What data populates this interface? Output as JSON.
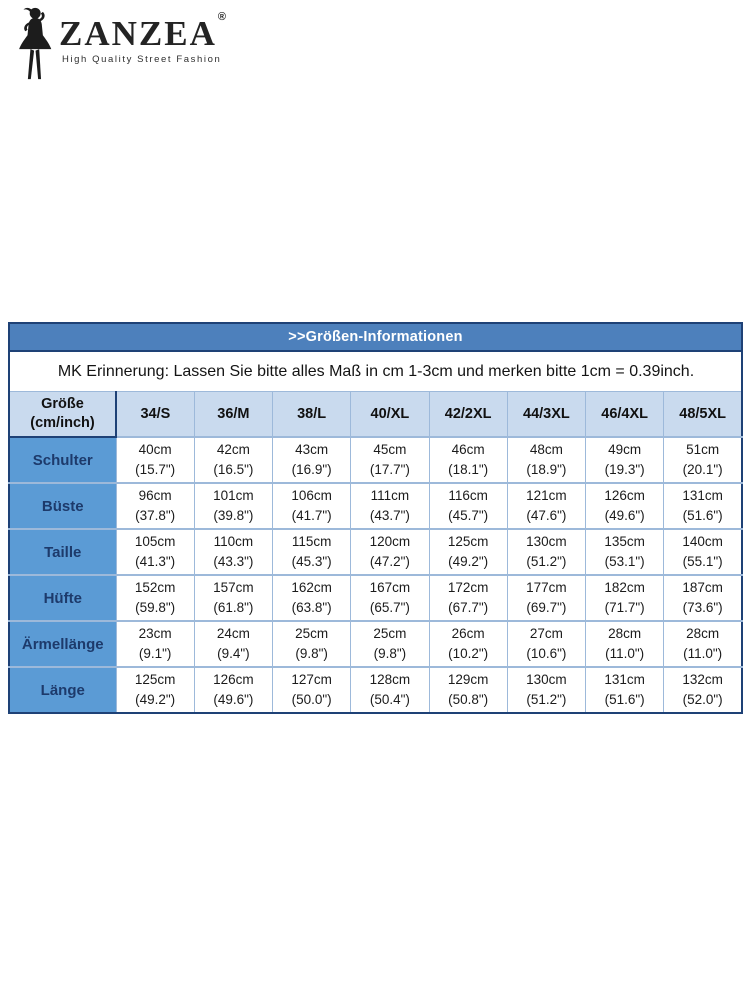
{
  "brand": {
    "name": "ZANZEA",
    "registered": "®",
    "tagline": "High Quality Street Fashion"
  },
  "size_chart": {
    "title": ">>Größen-Informationen",
    "note": "MK Erinnerung: Lassen Sie bitte alles Maß in cm 1-3cm und merken bitte 1cm = 0.39inch.",
    "corner": {
      "line1": "Größe",
      "line2": "(cm/inch)"
    },
    "columns": [
      "34/S",
      "36/M",
      "38/L",
      "40/XL",
      "42/2XL",
      "44/3XL",
      "46/4XL",
      "48/5XL"
    ],
    "rows": [
      {
        "label": "Schulter",
        "cells": [
          {
            "cm": "40cm",
            "inch": "(15.7\")"
          },
          {
            "cm": "42cm",
            "inch": "(16.5\")"
          },
          {
            "cm": "43cm",
            "inch": "(16.9\")"
          },
          {
            "cm": "45cm",
            "inch": "(17.7\")"
          },
          {
            "cm": "46cm",
            "inch": "(18.1\")"
          },
          {
            "cm": "48cm",
            "inch": "(18.9\")"
          },
          {
            "cm": "49cm",
            "inch": "(19.3\")"
          },
          {
            "cm": "51cm",
            "inch": "(20.1\")"
          }
        ]
      },
      {
        "label": "Büste",
        "cells": [
          {
            "cm": "96cm",
            "inch": "(37.8\")"
          },
          {
            "cm": "101cm",
            "inch": "(39.8\")"
          },
          {
            "cm": "106cm",
            "inch": "(41.7\")"
          },
          {
            "cm": "111cm",
            "inch": "(43.7\")"
          },
          {
            "cm": "116cm",
            "inch": "(45.7\")"
          },
          {
            "cm": "121cm",
            "inch": "(47.6\")"
          },
          {
            "cm": "126cm",
            "inch": "(49.6\")"
          },
          {
            "cm": "131cm",
            "inch": "(51.6\")"
          }
        ]
      },
      {
        "label": "Taille",
        "cells": [
          {
            "cm": "105cm",
            "inch": "(41.3\")"
          },
          {
            "cm": "110cm",
            "inch": "(43.3\")"
          },
          {
            "cm": "115cm",
            "inch": "(45.3\")"
          },
          {
            "cm": "120cm",
            "inch": "(47.2\")"
          },
          {
            "cm": "125cm",
            "inch": "(49.2\")"
          },
          {
            "cm": "130cm",
            "inch": "(51.2\")"
          },
          {
            "cm": "135cm",
            "inch": "(53.1\")"
          },
          {
            "cm": "140cm",
            "inch": "(55.1\")"
          }
        ]
      },
      {
        "label": "Hüfte",
        "cells": [
          {
            "cm": "152cm",
            "inch": "(59.8\")"
          },
          {
            "cm": "157cm",
            "inch": "(61.8\")"
          },
          {
            "cm": "162cm",
            "inch": "(63.8\")"
          },
          {
            "cm": "167cm",
            "inch": "(65.7\")"
          },
          {
            "cm": "172cm",
            "inch": "(67.7\")"
          },
          {
            "cm": "177cm",
            "inch": "(69.7\")"
          },
          {
            "cm": "182cm",
            "inch": "(71.7\")"
          },
          {
            "cm": "187cm",
            "inch": "(73.6\")"
          }
        ]
      },
      {
        "label": "Ärmellänge",
        "cells": [
          {
            "cm": "23cm",
            "inch": "(9.1\")"
          },
          {
            "cm": "24cm",
            "inch": "(9.4\")"
          },
          {
            "cm": "25cm",
            "inch": "(9.8\")"
          },
          {
            "cm": "25cm",
            "inch": "(9.8\")"
          },
          {
            "cm": "26cm",
            "inch": "(10.2\")"
          },
          {
            "cm": "27cm",
            "inch": "(10.6\")"
          },
          {
            "cm": "28cm",
            "inch": "(11.0\")"
          },
          {
            "cm": "28cm",
            "inch": "(11.0\")"
          }
        ]
      },
      {
        "label": "Länge",
        "cells": [
          {
            "cm": "125cm",
            "inch": "(49.2\")"
          },
          {
            "cm": "126cm",
            "inch": "(49.6\")"
          },
          {
            "cm": "127cm",
            "inch": "(50.0\")"
          },
          {
            "cm": "128cm",
            "inch": "(50.4\")"
          },
          {
            "cm": "129cm",
            "inch": "(50.8\")"
          },
          {
            "cm": "130cm",
            "inch": "(51.2\")"
          },
          {
            "cm": "131cm",
            "inch": "(51.6\")"
          },
          {
            "cm": "132cm",
            "inch": "(52.0\")"
          }
        ]
      }
    ]
  },
  "colors": {
    "title_bar_blue": "#4d80bc",
    "label_column_blue": "#5b9bd5",
    "header_row_blue": "#c9daee",
    "grid_line_blue": "#9db9da",
    "dark_border_navy": "#1e4176",
    "label_text_navy": "#1d3a6b"
  }
}
